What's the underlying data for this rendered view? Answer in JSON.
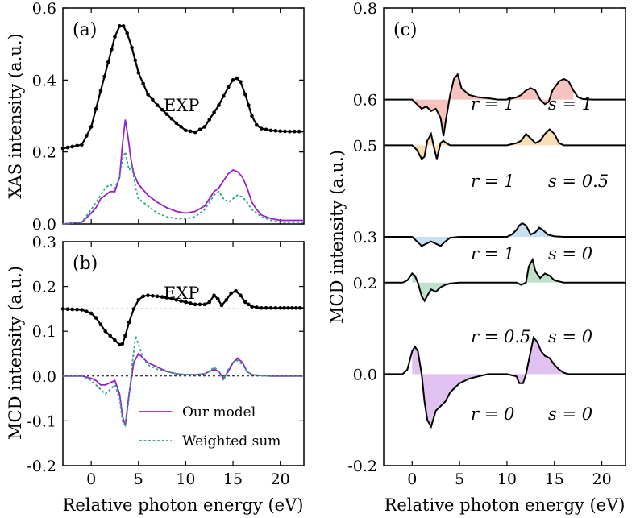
{
  "chart_data": [
    {
      "panel": "(a)",
      "type": "line",
      "ylabel": "XAS intensity (a.u.)",
      "xlabel": "",
      "xlim": [
        -3,
        22.5
      ],
      "ylim": [
        0,
        0.6
      ],
      "xticks": [
        0,
        5,
        10,
        15,
        20
      ],
      "yticks": [
        0.0,
        0.2,
        0.4,
        0.6
      ],
      "ytick_labels": [
        "0.0",
        "0.2",
        "0.4",
        "0.6"
      ],
      "annotation": "EXP",
      "series": [
        {
          "name": "EXP",
          "color": "#000000",
          "style": "line-markers",
          "x": [
            -3,
            -1,
            0,
            1,
            1.8,
            2.5,
            3,
            3.4,
            3.8,
            4.3,
            5,
            6,
            7,
            8,
            9,
            10,
            11,
            12,
            12.5,
            13,
            13.5,
            14,
            14.5,
            15,
            15.4,
            15.8,
            16.3,
            17,
            17.5,
            18,
            19,
            20,
            21,
            22.5
          ],
          "y": [
            0.21,
            0.22,
            0.27,
            0.37,
            0.45,
            0.52,
            0.55,
            0.55,
            0.53,
            0.49,
            0.42,
            0.36,
            0.33,
            0.305,
            0.28,
            0.26,
            0.255,
            0.27,
            0.29,
            0.31,
            0.33,
            0.355,
            0.38,
            0.4,
            0.405,
            0.395,
            0.36,
            0.3,
            0.275,
            0.265,
            0.26,
            0.258,
            0.257,
            0.257
          ]
        },
        {
          "name": "Our model",
          "color": "#9a1fc7",
          "style": "solid",
          "x": [
            -3,
            -1,
            0,
            0.5,
            1,
            1.5,
            2,
            2.5,
            3,
            3.3,
            3.6,
            3.9,
            4.2,
            4.5,
            5,
            6,
            7,
            8,
            9,
            10,
            11,
            12,
            12.5,
            13,
            13.5,
            14,
            14.5,
            15,
            15.5,
            16,
            16.5,
            17,
            17.5,
            18,
            19,
            20,
            22.5
          ],
          "y": [
            0,
            0.005,
            0.03,
            0.045,
            0.07,
            0.08,
            0.09,
            0.09,
            0.13,
            0.22,
            0.29,
            0.24,
            0.18,
            0.14,
            0.11,
            0.08,
            0.06,
            0.045,
            0.035,
            0.03,
            0.035,
            0.05,
            0.07,
            0.09,
            0.1,
            0.12,
            0.14,
            0.15,
            0.145,
            0.13,
            0.1,
            0.06,
            0.04,
            0.025,
            0.015,
            0.01,
            0.01
          ]
        },
        {
          "name": "Weighted sum",
          "color": "#2aa888",
          "style": "dotted",
          "x": [
            -3,
            -1,
            0,
            1,
            1.5,
            2,
            2.5,
            3,
            3.3,
            3.6,
            4,
            4.3,
            4.7,
            5,
            6,
            7,
            8,
            9,
            10,
            11,
            12,
            12.5,
            13,
            13.5,
            14,
            14.5,
            15,
            15.5,
            16,
            16.5,
            17,
            18,
            19,
            20,
            22.5
          ],
          "y": [
            0,
            0.005,
            0.04,
            0.08,
            0.1,
            0.11,
            0.1,
            0.13,
            0.18,
            0.2,
            0.15,
            0.16,
            0.1,
            0.07,
            0.05,
            0.03,
            0.02,
            0.015,
            0.015,
            0.02,
            0.04,
            0.06,
            0.08,
            0.09,
            0.07,
            0.06,
            0.07,
            0.08,
            0.075,
            0.06,
            0.04,
            0.02,
            0.01,
            0.005,
            0.005
          ]
        }
      ]
    },
    {
      "panel": "(b)",
      "type": "line",
      "ylabel": "MCD intensity (a.u.)",
      "xlabel": "Relative photon energy (eV)",
      "xlim": [
        -3,
        22.5
      ],
      "ylim": [
        -0.2,
        0.3
      ],
      "xticks": [
        0,
        5,
        10,
        15,
        20
      ],
      "xtick_labels": [
        "0",
        "5",
        "10",
        "15",
        "20"
      ],
      "yticks": [
        -0.2,
        -0.1,
        0.0,
        0.1,
        0.2,
        0.3
      ],
      "ytick_labels": [
        "-0.2",
        "-0.1",
        "0.0",
        "0.1",
        "0.2",
        "0.3"
      ],
      "annotation": "EXP",
      "reference_lines": [
        0.15,
        0.0
      ],
      "legend": [
        "Our model",
        "Weighted sum"
      ],
      "series": [
        {
          "name": "EXP",
          "color": "#000000",
          "style": "line-markers",
          "x": [
            -3,
            -1,
            0,
            0.5,
            1,
            1.5,
            2,
            2.5,
            3,
            3.3,
            3.6,
            4,
            4.5,
            5,
            5.5,
            6,
            7,
            8,
            9,
            10,
            11,
            12,
            12.5,
            13,
            13.4,
            13.8,
            14.3,
            14.8,
            15.3,
            15.8,
            16.3,
            17,
            18,
            19,
            20,
            22.5
          ],
          "y": [
            0.15,
            0.148,
            0.14,
            0.13,
            0.115,
            0.1,
            0.09,
            0.08,
            0.07,
            0.072,
            0.09,
            0.12,
            0.15,
            0.17,
            0.178,
            0.18,
            0.178,
            0.175,
            0.17,
            0.165,
            0.16,
            0.16,
            0.165,
            0.18,
            0.172,
            0.158,
            0.17,
            0.185,
            0.19,
            0.18,
            0.165,
            0.155,
            0.152,
            0.152,
            0.152,
            0.152
          ]
        },
        {
          "name": "Our model",
          "color": "#9a1fc7",
          "style": "solid",
          "x": [
            -3,
            -1,
            0,
            0.5,
            1,
            1.5,
            2,
            2.5,
            3,
            3.3,
            3.6,
            4,
            4.5,
            5,
            5.5,
            6,
            7,
            8,
            9,
            10,
            11,
            12,
            12.5,
            13,
            13.5,
            14,
            14.5,
            15,
            15.5,
            16,
            16.5,
            17,
            18,
            19,
            20,
            22.5
          ],
          "y": [
            0,
            0,
            -0.005,
            -0.01,
            -0.02,
            -0.02,
            -0.015,
            -0.01,
            -0.04,
            -0.09,
            -0.11,
            -0.04,
            0.03,
            0.05,
            0.04,
            0.03,
            0.02,
            0.01,
            0.005,
            0.003,
            0.003,
            0.005,
            0.01,
            0.015,
            0.01,
            -0.005,
            0.01,
            0.03,
            0.04,
            0.03,
            0.01,
            0.003,
            0.001,
            0,
            0,
            0
          ]
        },
        {
          "name": "Weighted sum",
          "color": "#2aa888",
          "style": "dotted",
          "x": [
            -3,
            -1,
            0,
            0.5,
            1,
            1.5,
            2,
            2.5,
            3,
            3.3,
            3.6,
            4,
            4.3,
            4.7,
            5,
            5.5,
            6,
            7,
            8,
            9,
            10,
            11,
            12,
            12.5,
            13,
            13.5,
            14,
            14.5,
            15,
            15.5,
            16,
            16.5,
            17,
            18,
            19,
            20,
            22.5
          ],
          "y": [
            0,
            0,
            -0.01,
            -0.02,
            -0.03,
            -0.04,
            -0.03,
            -0.02,
            -0.05,
            -0.1,
            -0.11,
            -0.05,
            0.02,
            0.09,
            0.07,
            0.04,
            0.025,
            0.015,
            0.01,
            0.005,
            0.003,
            0.003,
            0.005,
            0.01,
            0.02,
            0.01,
            -0.01,
            0.015,
            0.03,
            0.035,
            0.025,
            0.01,
            0.003,
            0.001,
            0,
            0,
            0
          ]
        }
      ]
    },
    {
      "panel": "(c)",
      "type": "area",
      "ylabel": "MCD intensity (a.u.)",
      "xlabel": "Relative photon energy (eV)",
      "xlim": [
        -3,
        22.5
      ],
      "ylim": [
        -0.2,
        0.8
      ],
      "xticks": [
        0,
        5,
        10,
        15,
        20
      ],
      "xtick_labels": [
        "0",
        "5",
        "10",
        "15",
        "20"
      ],
      "yticks": [
        -0.2,
        0.0,
        0.2,
        0.3,
        0.5,
        0.6,
        0.8
      ],
      "ytick_labels": [
        "-0.2",
        "0.0",
        "0.2",
        "0.3",
        "0.5",
        "0.6",
        "0.8"
      ],
      "series": [
        {
          "label_r": "r = 1",
          "label_s": "s = 1",
          "baseline": 0.6,
          "color": "#f4b8b4",
          "x": [
            -3,
            0,
            0.5,
            1,
            1.5,
            2,
            2.5,
            3,
            3.3,
            3.6,
            4,
            4.4,
            4.8,
            5.2,
            6,
            7,
            8,
            9,
            10,
            11,
            11.5,
            12,
            12.5,
            13,
            13.5,
            14,
            14.4,
            14.8,
            15.5,
            16,
            16.5,
            17,
            17.5,
            18,
            19,
            20,
            22.5
          ],
          "y": [
            0.6,
            0.6,
            0.59,
            0.58,
            0.585,
            0.575,
            0.58,
            0.56,
            0.52,
            0.56,
            0.61,
            0.645,
            0.655,
            0.625,
            0.61,
            0.605,
            0.603,
            0.6,
            0.6,
            0.605,
            0.61,
            0.62,
            0.625,
            0.62,
            0.6,
            0.59,
            0.595,
            0.62,
            0.64,
            0.645,
            0.64,
            0.62,
            0.605,
            0.601,
            0.6,
            0.6,
            0.6
          ]
        },
        {
          "label_r": "r = 1",
          "label_s": "s = 0.5",
          "baseline": 0.5,
          "color": "#f8d9a6",
          "x": [
            -3,
            0,
            0.5,
            1,
            1.3,
            1.6,
            2,
            2.3,
            2.6,
            3,
            3.3,
            3.6,
            4,
            5,
            6,
            7,
            8,
            9,
            10,
            11,
            11.5,
            12,
            12.5,
            13,
            13.5,
            14,
            14.5,
            15,
            15.5,
            16,
            17,
            18,
            19,
            20,
            22.5
          ],
          "y": [
            0.5,
            0.5,
            0.49,
            0.47,
            0.475,
            0.51,
            0.525,
            0.495,
            0.47,
            0.505,
            0.51,
            0.505,
            0.5,
            0.5,
            0.5,
            0.5,
            0.5,
            0.5,
            0.5,
            0.505,
            0.51,
            0.525,
            0.515,
            0.505,
            0.51,
            0.525,
            0.535,
            0.525,
            0.505,
            0.5,
            0.5,
            0.5,
            0.5,
            0.5,
            0.5
          ]
        },
        {
          "label_r": "r = 1",
          "label_s": "s = 0",
          "baseline": 0.3,
          "color": "#bcd9ef",
          "x": [
            -3,
            0,
            0.5,
            1,
            1.5,
            2,
            2.5,
            3,
            3.5,
            4,
            5,
            6,
            7,
            8,
            9,
            10,
            10.5,
            11,
            11.3,
            11.6,
            12,
            12.5,
            13,
            13.4,
            13.8,
            14.3,
            15,
            16,
            17,
            18,
            20,
            22.5
          ],
          "y": [
            0.3,
            0.3,
            0.29,
            0.28,
            0.285,
            0.29,
            0.285,
            0.28,
            0.29,
            0.298,
            0.3,
            0.3,
            0.3,
            0.3,
            0.3,
            0.3,
            0.305,
            0.315,
            0.325,
            0.33,
            0.325,
            0.305,
            0.31,
            0.32,
            0.315,
            0.305,
            0.301,
            0.3,
            0.3,
            0.3,
            0.3,
            0.3
          ]
        },
        {
          "label_r": "r = 0.5",
          "label_s": "s = 0",
          "baseline": 0.2,
          "color": "#b4dcc2",
          "x": [
            -3,
            -1,
            -0.5,
            0,
            0.3,
            0.6,
            1,
            1.3,
            1.7,
            2,
            2.5,
            3,
            3.5,
            4,
            5,
            6,
            7,
            8,
            9,
            10,
            11,
            11.5,
            12,
            12.3,
            12.7,
            13,
            13.5,
            14,
            14.5,
            15,
            16,
            17,
            18,
            20,
            22.5
          ],
          "y": [
            0.2,
            0.2,
            0.205,
            0.22,
            0.215,
            0.2,
            0.17,
            0.16,
            0.175,
            0.185,
            0.18,
            0.19,
            0.195,
            0.198,
            0.2,
            0.2,
            0.2,
            0.2,
            0.2,
            0.2,
            0.2,
            0.195,
            0.2,
            0.235,
            0.25,
            0.225,
            0.21,
            0.22,
            0.215,
            0.205,
            0.2,
            0.2,
            0.2,
            0.2,
            0.2
          ]
        },
        {
          "label_r": "r = 0",
          "label_s": "s = 0",
          "baseline": 0.0,
          "color": "#dcb6ec",
          "x": [
            -3,
            -1,
            -0.5,
            0,
            0.3,
            0.6,
            1,
            1.3,
            1.6,
            2,
            2.5,
            3,
            3.5,
            4,
            4.5,
            5,
            6,
            7,
            8,
            9,
            10,
            11,
            11.3,
            11.7,
            12,
            12.5,
            12.8,
            13.2,
            13.6,
            14,
            14.5,
            15,
            15.5,
            16,
            16.5,
            17,
            18,
            20,
            22.5
          ],
          "y": [
            0,
            0,
            0.01,
            0.05,
            0.06,
            0.05,
            0.0,
            -0.06,
            -0.1,
            -0.115,
            -0.08,
            -0.07,
            -0.06,
            -0.04,
            -0.03,
            -0.02,
            -0.01,
            -0.005,
            0,
            0,
            0,
            -0.005,
            -0.02,
            -0.02,
            0.0,
            0.05,
            0.08,
            0.07,
            0.05,
            0.04,
            0.035,
            0.02,
            0.01,
            0.003,
            0,
            0,
            0,
            0,
            0
          ]
        }
      ]
    }
  ]
}
